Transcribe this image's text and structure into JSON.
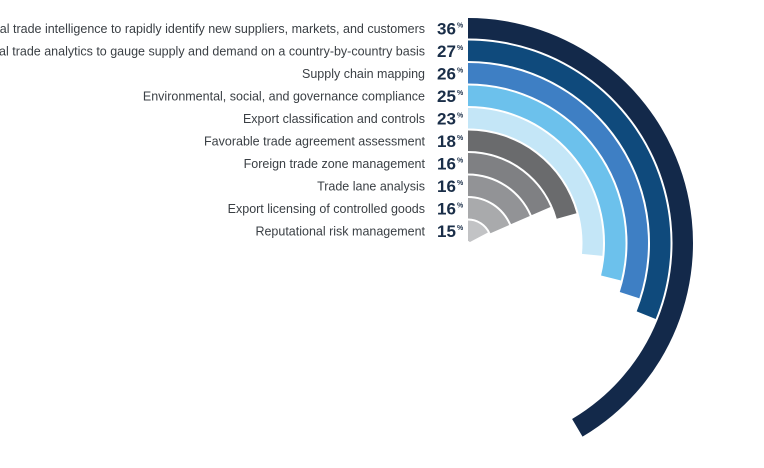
{
  "chart_data": {
    "type": "radial-bar",
    "value_suffix": "%",
    "categories": [
      "Global trade intelligence to rapidly identify new suppliers, markets, and customers",
      "Global trade analytics to gauge supply and demand on a country-by-country basis",
      "Supply chain mapping",
      "Environmental, social, and governance compliance",
      "Export classification and controls",
      "Favorable trade agreement assessment",
      "Foreign trade zone management",
      "Trade lane analysis",
      "Export licensing of controlled goods",
      "Reputational risk management"
    ],
    "values": [
      36,
      27,
      26,
      25,
      23,
      18,
      16,
      16,
      16,
      15
    ],
    "value_labels": [
      "36",
      "27",
      "26",
      "25",
      "23",
      "18",
      "16",
      "16",
      "16",
      "15"
    ],
    "colors": [
      "#13294a",
      "#0f4a7c",
      "#3e7fc4",
      "#6cc1ec",
      "#c4e6f7",
      "#6a6b6d",
      "#7f8083",
      "#929396",
      "#a9aaac",
      "#c2c3c5"
    ]
  }
}
